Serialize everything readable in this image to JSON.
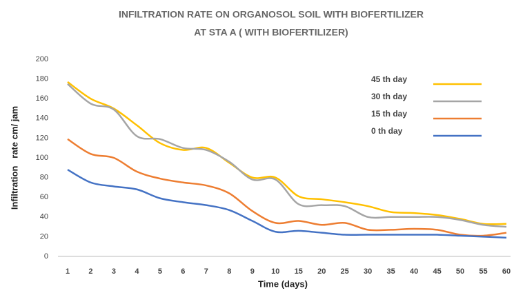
{
  "chart_data": {
    "type": "line",
    "title": [
      "INFILTRATION RATE ON ORGANOSOL SOIL WITH BIOFERTILIZER",
      "AT STA A ( WITH BIOFERTILIZER)"
    ],
    "x_label": "Time (days)",
    "y_label": "Infiltration   rate cm/ jam",
    "categories": [
      "1",
      "2",
      "3",
      "4",
      "5",
      "6",
      "7",
      "8",
      "9",
      "10",
      "15",
      "20",
      "25",
      "30",
      "35",
      "40",
      "45",
      "50",
      "55",
      "60"
    ],
    "series": [
      {
        "name": "45 th day",
        "color": "#ffc000",
        "values": [
          177,
          160,
          150,
          133,
          115,
          108,
          110,
          95,
          80,
          80,
          61,
          58,
          55,
          51,
          45,
          44,
          42,
          38,
          33,
          33
        ]
      },
      {
        "name": "30 th day",
        "color": "#a5a5a5",
        "values": [
          175,
          155,
          149,
          122,
          119,
          110,
          108,
          96,
          78,
          78,
          53,
          52,
          51,
          40,
          40,
          40,
          40,
          37,
          32,
          30
        ]
      },
      {
        "name": "15 th day",
        "color": "#ed7d31",
        "values": [
          119,
          104,
          100,
          86,
          79,
          75,
          72,
          64,
          46,
          34,
          36,
          32,
          34,
          27,
          27,
          28,
          27,
          22,
          21,
          24
        ]
      },
      {
        "name": "0 th day",
        "color": "#4472c4",
        "values": [
          88,
          75,
          71,
          68,
          59,
          55,
          52,
          47,
          36,
          25,
          26,
          24,
          22,
          22,
          22,
          22,
          22,
          21,
          20,
          19
        ]
      }
    ],
    "ylim": [
      0,
      200
    ],
    "yticks": [
      0,
      20,
      40,
      60,
      80,
      100,
      120,
      140,
      160,
      180,
      200
    ],
    "grid": false,
    "legend": "top-right"
  }
}
